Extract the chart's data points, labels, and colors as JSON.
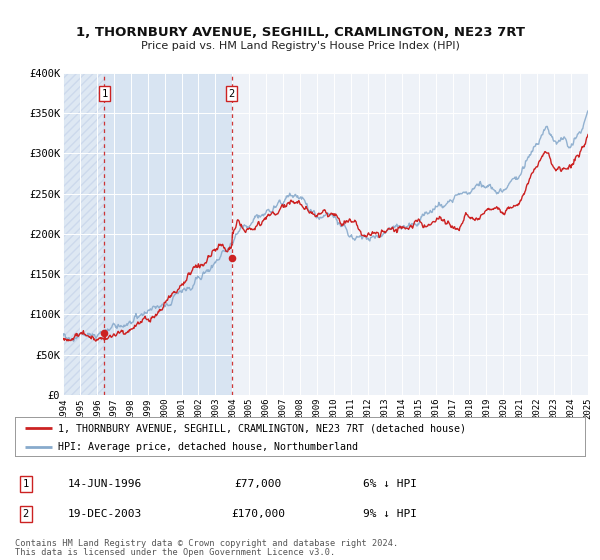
{
  "title": "1, THORNBURY AVENUE, SEGHILL, CRAMLINGTON, NE23 7RT",
  "subtitle": "Price paid vs. HM Land Registry's House Price Index (HPI)",
  "background_color": "#ffffff",
  "plot_bg_color": "#eef2f8",
  "grid_color": "#ffffff",
  "hpi_color": "#88aacc",
  "price_color": "#cc2222",
  "sale1_date_num": 1996.45,
  "sale1_price": 77000,
  "sale1_label": "1",
  "sale1_date_str": "14-JUN-1996",
  "sale1_pct": "6%",
  "sale2_date_num": 2003.96,
  "sale2_price": 170000,
  "sale2_label": "2",
  "sale2_date_str": "19-DEC-2003",
  "sale2_pct": "9%",
  "legend_line1": "1, THORNBURY AVENUE, SEGHILL, CRAMLINGTON, NE23 7RT (detached house)",
  "legend_line2": "HPI: Average price, detached house, Northumberland",
  "footer1": "Contains HM Land Registry data © Crown copyright and database right 2024.",
  "footer2": "This data is licensed under the Open Government Licence v3.0.",
  "xmin": 1994,
  "xmax": 2025,
  "ymin": 0,
  "ymax": 400000,
  "yticks": [
    0,
    50000,
    100000,
    150000,
    200000,
    250000,
    300000,
    350000,
    400000
  ],
  "ytick_labels": [
    "£0",
    "£50K",
    "£100K",
    "£150K",
    "£200K",
    "£250K",
    "£300K",
    "£350K",
    "£400K"
  ],
  "xticks": [
    1994,
    1995,
    1996,
    1997,
    1998,
    1999,
    2000,
    2001,
    2002,
    2003,
    2004,
    2005,
    2006,
    2007,
    2008,
    2009,
    2010,
    2011,
    2012,
    2013,
    2014,
    2015,
    2016,
    2017,
    2018,
    2019,
    2020,
    2021,
    2022,
    2023,
    2024,
    2025
  ],
  "shaded_color": "#d0dff0",
  "hatch_color": "#c8d4e8"
}
